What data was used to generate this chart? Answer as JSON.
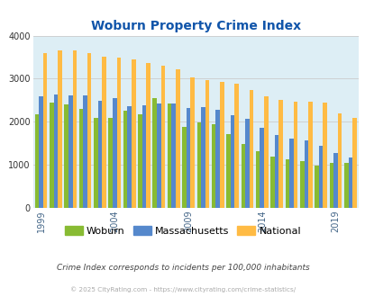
{
  "title": "Woburn Property Crime Index",
  "years": [
    1999,
    2000,
    2001,
    2002,
    2003,
    2004,
    2005,
    2006,
    2007,
    2008,
    2009,
    2010,
    2011,
    2012,
    2013,
    2014,
    2015,
    2016,
    2017,
    2018,
    2019,
    2020
  ],
  "woburn": [
    2180,
    2450,
    2400,
    2300,
    2100,
    2090,
    2250,
    2180,
    2550,
    2420,
    1880,
    1980,
    1950,
    1720,
    1490,
    1320,
    1200,
    1130,
    1090,
    980,
    1050,
    1040
  ],
  "massachusetts": [
    2590,
    2630,
    2620,
    2620,
    2490,
    2560,
    2360,
    2380,
    2430,
    2430,
    2310,
    2340,
    2280,
    2160,
    2070,
    1850,
    1700,
    1610,
    1570,
    1450,
    1270,
    1180
  ],
  "national": [
    3600,
    3650,
    3660,
    3600,
    3520,
    3490,
    3440,
    3360,
    3300,
    3210,
    3040,
    2960,
    2920,
    2880,
    2740,
    2600,
    2510,
    2460,
    2460,
    2440,
    2200,
    2100
  ],
  "woburn_color": "#88bb33",
  "massachusetts_color": "#5588cc",
  "national_color": "#ffbb44",
  "background_color": "#ddeef5",
  "title_color": "#1155aa",
  "ylim": [
    0,
    4000
  ],
  "yticks": [
    0,
    1000,
    2000,
    3000,
    4000
  ],
  "xtick_years": [
    1999,
    2004,
    2009,
    2014,
    2019
  ],
  "subtitle": "Crime Index corresponds to incidents per 100,000 inhabitants",
  "footer": "© 2025 CityRating.com - https://www.cityrating.com/crime-statistics/",
  "subtitle_color": "#444444",
  "footer_color": "#aaaaaa",
  "bar_width": 0.28,
  "grid_color": "#cccccc"
}
